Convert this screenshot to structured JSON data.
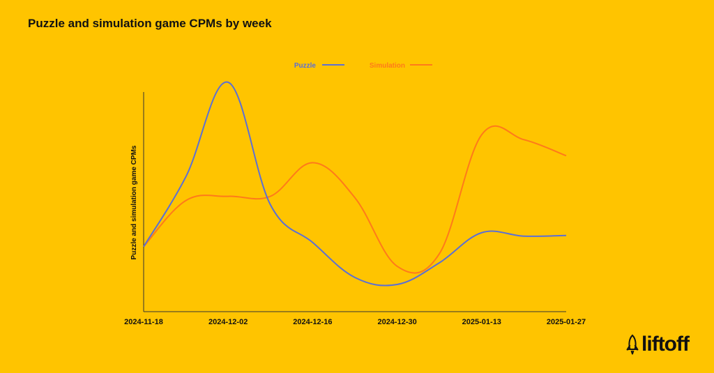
{
  "chart_data": {
    "type": "line",
    "title": "Puzzle and simulation game CPMs by week",
    "ylabel": "Puzzle and simulation game CPMs",
    "xlabel": "",
    "x": [
      "2024-11-18",
      "2024-11-25",
      "2024-12-02",
      "2024-12-09",
      "2024-12-16",
      "2024-12-23",
      "2024-12-30",
      "2025-01-06",
      "2025-01-13",
      "2025-01-20",
      "2025-01-27"
    ],
    "x_ticks": [
      "2024-11-18",
      "2024-12-02",
      "2024-12-16",
      "2024-12-30",
      "2025-01-13",
      "2025-01-27"
    ],
    "y_axis_values_shown": false,
    "grid": false,
    "legend_position": "top-center",
    "series": [
      {
        "name": "Puzzle",
        "color": "#5B6FD6",
        "values": [
          1.0,
          2.0,
          3.35,
          1.6,
          1.06,
          0.56,
          0.46,
          0.77,
          1.2,
          1.15,
          1.16
        ]
      },
      {
        "name": "Simulation",
        "color": "#FF7A1A",
        "values": [
          1.0,
          1.66,
          1.72,
          1.72,
          2.2,
          1.7,
          0.72,
          0.9,
          2.6,
          2.53,
          2.3
        ]
      }
    ]
  },
  "brand": {
    "logo_text": "liftoff",
    "logo_icon": "rocket-icon"
  }
}
